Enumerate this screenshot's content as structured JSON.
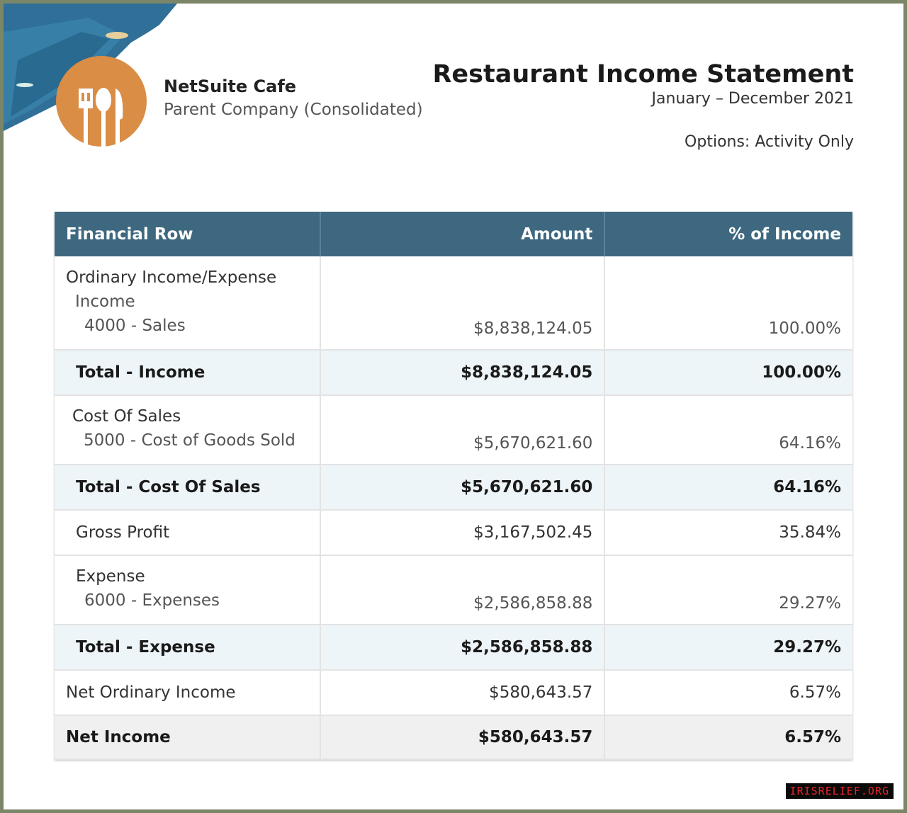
{
  "company": {
    "name": "NetSuite Cafe",
    "subsidiary": "Parent Company (Consolidated)",
    "logo_icon": "fork-spoon-knife-icon",
    "logo_color": "#d98d45"
  },
  "report": {
    "title": "Restaurant Income Statement",
    "period": "January – December 2021",
    "options": "Options: Activity Only"
  },
  "table": {
    "headers": [
      "Financial Row",
      "Amount",
      "% of Income"
    ],
    "header_color": "#3e6880",
    "rows": {
      "ordinary": {
        "label": "Ordinary Income/Expense",
        "income": "Income",
        "sales": "4000 - Sales",
        "amount": "$8,838,124.05",
        "pct": "100.00%"
      },
      "total_income": {
        "label": "Total - Income",
        "amount": "$8,838,124.05",
        "pct": "100.00%"
      },
      "cos": {
        "label": "Cost Of Sales",
        "cogs": "5000 - Cost of Goods Sold",
        "amount": "$5,670,621.60",
        "pct": "64.16%"
      },
      "total_cos": {
        "label": "Total - Cost Of Sales",
        "amount": "$5,670,621.60",
        "pct": "64.16%"
      },
      "gross": {
        "label": "Gross Profit",
        "amount": "$3,167,502.45",
        "pct": "35.84%"
      },
      "expense": {
        "label": "Expense",
        "exp": "6000 - Expenses",
        "amount": "$2,586,858.88",
        "pct": "29.27%"
      },
      "total_expense": {
        "label": "Total - Expense",
        "amount": "$2,586,858.88",
        "pct": "29.27%"
      },
      "net_ordinary": {
        "label": "Net Ordinary Income",
        "amount": "$580,643.57",
        "pct": "6.57%"
      },
      "net_income": {
        "label": "Net Income",
        "amount": "$580,643.57",
        "pct": "6.57%"
      }
    }
  },
  "watermark": "IRISRELIEF.ORG"
}
